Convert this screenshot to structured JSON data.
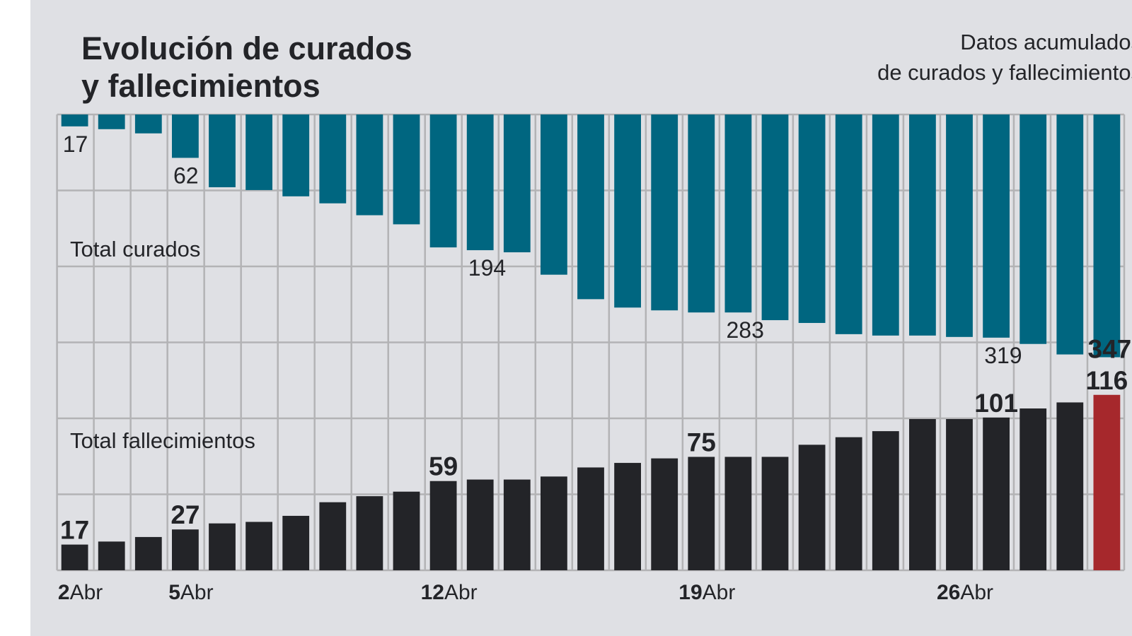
{
  "chart_data": {
    "type": "bar",
    "title": "Evolución de curados y fallecimientos",
    "title_lines": [
      "Evolución de curados",
      "y fallecimientos"
    ],
    "subtitle_lines": [
      "Datos acumulados",
      "de curados y fallecimientos"
    ],
    "categories": [
      "2 Abr",
      "3 Abr",
      "4 Abr",
      "5 Abr",
      "6 Abr",
      "7 Abr",
      "8 Abr",
      "9 Abr",
      "10 Abr",
      "11 Abr",
      "12 Abr",
      "13 Abr",
      "14 Abr",
      "15 Abr",
      "16 Abr",
      "17 Abr",
      "18 Abr",
      "19 Abr",
      "20 Abr",
      "21 Abr",
      "22 Abr",
      "23 Abr",
      "24 Abr",
      "25 Abr",
      "26 Abr",
      "27 Abr",
      "28 Abr",
      "29 Abr",
      "30 Abr"
    ],
    "x_ticks": [
      {
        "index": 0,
        "day": "2",
        "month": "Abr"
      },
      {
        "index": 3,
        "day": "5",
        "month": "Abr"
      },
      {
        "index": 10,
        "day": "12",
        "month": "Abr"
      },
      {
        "index": 17,
        "day": "19",
        "month": "Abr"
      },
      {
        "index": 24,
        "day": "26",
        "month": "Abr"
      }
    ],
    "series": [
      {
        "name": "Total curados",
        "direction": "down-from-top",
        "color": "#006680",
        "values": [
          17,
          21,
          27,
          62,
          104,
          108,
          117,
          127,
          144,
          157,
          190,
          194,
          197,
          229,
          264,
          276,
          280,
          283,
          283,
          294,
          298,
          314,
          316,
          316,
          318,
          319,
          328,
          343,
          347
        ],
        "data_labels": [
          {
            "index": 0,
            "text": "17"
          },
          {
            "index": 3,
            "text": "62"
          },
          {
            "index": 11,
            "text": "194"
          },
          {
            "index": 18,
            "text": "283"
          },
          {
            "index": 25,
            "text": "319"
          },
          {
            "index": 28,
            "text": "347",
            "bold": true
          }
        ]
      },
      {
        "name": "Total fallecimientos",
        "direction": "up-from-bottom",
        "color": "#232428",
        "highlight_color": "#a6282c",
        "highlight_index": 28,
        "values": [
          17,
          19,
          22,
          27,
          31,
          32,
          36,
          45,
          49,
          52,
          59,
          60,
          60,
          62,
          68,
          71,
          74,
          75,
          75,
          75,
          83,
          88,
          92,
          100,
          100,
          101,
          107,
          111,
          116
        ],
        "data_labels": [
          {
            "index": 0,
            "text": "17"
          },
          {
            "index": 3,
            "text": "27"
          },
          {
            "index": 10,
            "text": "59"
          },
          {
            "index": 17,
            "text": "75"
          },
          {
            "index": 25,
            "text": "101"
          },
          {
            "index": 28,
            "text": "116"
          }
        ]
      }
    ],
    "grid": true,
    "legend": "none",
    "colors": {
      "background": "#dfe0e4",
      "grid": "#b3b3b5"
    }
  }
}
